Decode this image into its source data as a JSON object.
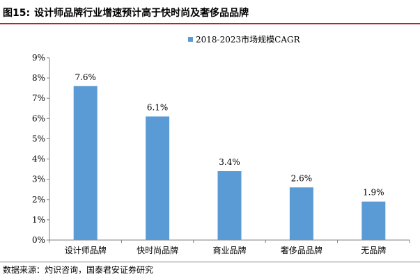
{
  "figure": {
    "label": "图15:",
    "title": "设计师品牌行业增速预计高于快时尚及奢侈品品牌"
  },
  "source": "数据来源：灼识咨询，国泰君安证券研究",
  "colors": {
    "bar": "#5b9bd5",
    "rule_top": "#b3282d",
    "axis": "#808080"
  },
  "chart_data": {
    "type": "bar",
    "categories": [
      "设计师品牌",
      "快时尚品牌",
      "商业品牌",
      "奢侈品品牌",
      "无品牌"
    ],
    "series": [
      {
        "name": "2018-2023市场规模CAGR",
        "values": [
          7.6,
          6.1,
          3.4,
          2.6,
          1.9
        ],
        "data_labels": [
          "7.6%",
          "6.1%",
          "3.4%",
          "2.6%",
          "1.9%"
        ]
      }
    ],
    "ylim": [
      0,
      9
    ],
    "yticks": [
      "0%",
      "1%",
      "2%",
      "3%",
      "4%",
      "5%",
      "6%",
      "7%",
      "8%",
      "9%"
    ],
    "grid": false,
    "legend_position": "top-right"
  }
}
